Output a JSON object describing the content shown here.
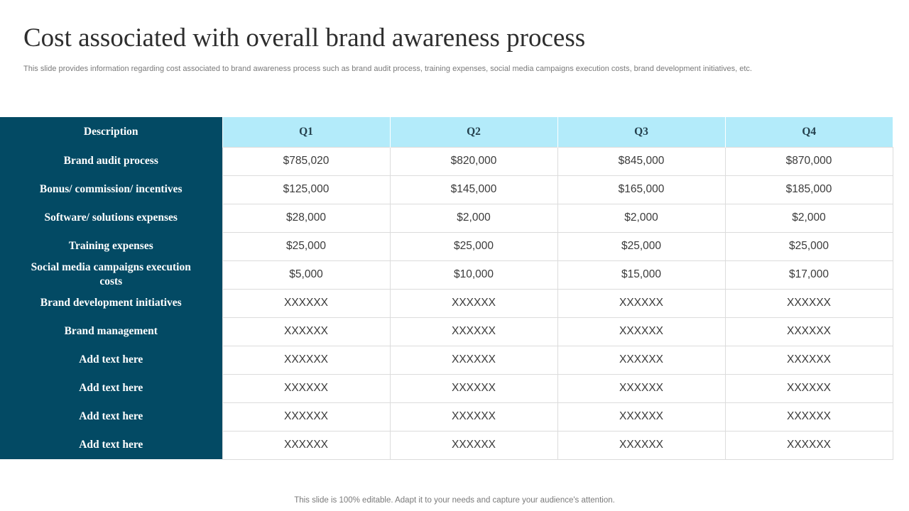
{
  "title": "Cost associated with overall brand awareness process",
  "subtitle": "This slide provides information regarding cost associated to brand awareness process such as brand audit process, training expenses, social media campaigns execution costs, brand development initiatives, etc.",
  "colors": {
    "header_dark": "#034a64",
    "header_light": "#b3ebfa"
  },
  "table": {
    "headers": [
      "Description",
      "Q1",
      "Q2",
      "Q3",
      "Q4"
    ],
    "rows": [
      {
        "label": "Brand audit process",
        "values": [
          "$785,020",
          "$820,000",
          "$845,000",
          "$870,000"
        ]
      },
      {
        "label": "Bonus/ commission/ incentives",
        "values": [
          "$125,000",
          "$145,000",
          "$165,000",
          "$185,000"
        ]
      },
      {
        "label": "Software/ solutions  expenses",
        "values": [
          "$28,000",
          "$2,000",
          "$2,000",
          "$2,000"
        ]
      },
      {
        "label": "Training expenses",
        "values": [
          "$25,000",
          "$25,000",
          "$25,000",
          "$25,000"
        ]
      },
      {
        "label": "Social media campaigns execution costs",
        "values": [
          "$5,000",
          "$10,000",
          "$15,000",
          "$17,000"
        ]
      },
      {
        "label": "Brand development initiatives",
        "values": [
          "XXXXXX",
          "XXXXXX",
          "XXXXXX",
          "XXXXXX"
        ]
      },
      {
        "label": "Brand management",
        "values": [
          "XXXXXX",
          "XXXXXX",
          "XXXXXX",
          "XXXXXX"
        ]
      },
      {
        "label": "Add text here",
        "values": [
          "XXXXXX",
          "XXXXXX",
          "XXXXXX",
          "XXXXXX"
        ]
      },
      {
        "label": "Add text here",
        "values": [
          "XXXXXX",
          "XXXXXX",
          "XXXXXX",
          "XXXXXX"
        ]
      },
      {
        "label": "Add text here",
        "values": [
          "XXXXXX",
          "XXXXXX",
          "XXXXXX",
          "XXXXXX"
        ]
      },
      {
        "label": "Add text here",
        "values": [
          "XXXXXX",
          "XXXXXX",
          "XXXXXX",
          "XXXXXX"
        ]
      }
    ]
  },
  "footer": "This slide is 100% editable. Adapt it to your needs and capture your audience's attention."
}
